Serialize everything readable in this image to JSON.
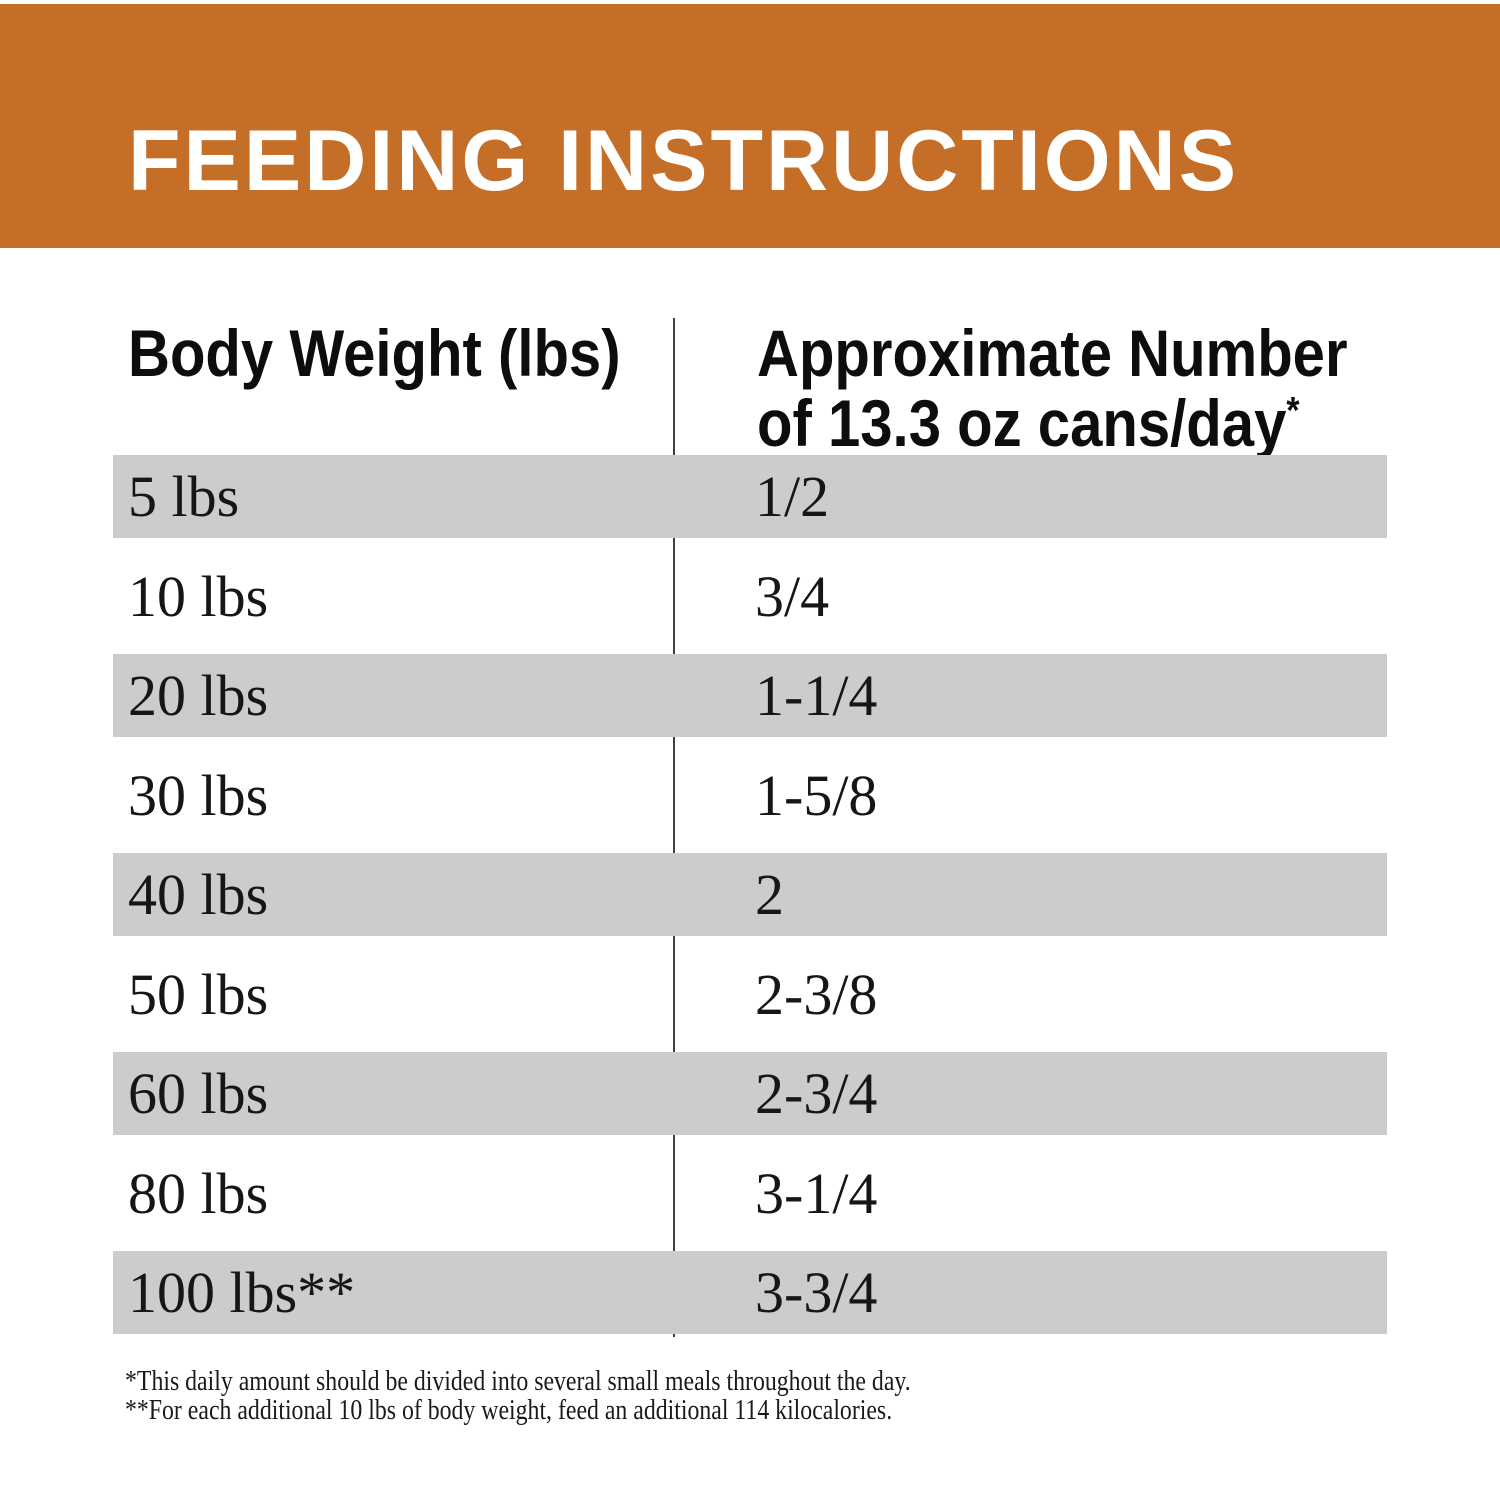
{
  "banner": {
    "title": "FEEDING INSTRUCTIONS"
  },
  "colors": {
    "banner_bg": "#C46E28",
    "banner_text": "#FFFFFF",
    "stripe_bg": "#CCCCCC",
    "divider": "#3F3F3F",
    "text": "#161616"
  },
  "table": {
    "col1_header": "Body Weight (lbs)",
    "col2_header_line1": "Approximate Number",
    "col2_header_line2": "of 13.3 oz cans/day",
    "col2_header_marker": "*",
    "rows": [
      {
        "weight": "5 lbs",
        "cans": "1/2"
      },
      {
        "weight": "10 lbs",
        "cans": "3/4"
      },
      {
        "weight": "20 lbs",
        "cans": "1-1/4"
      },
      {
        "weight": "30 lbs",
        "cans": "1-5/8"
      },
      {
        "weight": "40 lbs",
        "cans": "2"
      },
      {
        "weight": "50 lbs",
        "cans": "2-3/8"
      },
      {
        "weight": "60 lbs",
        "cans": "2-3/4"
      },
      {
        "weight": "80 lbs",
        "cans": "3-1/4"
      },
      {
        "weight": "100 lbs**",
        "cans": "3-3/4"
      }
    ]
  },
  "footnotes": {
    "line1": "*This daily amount should be divided into several small meals throughout the day.",
    "line2": "**For each additional 10 lbs of body weight, feed an additional 114 kilocalories."
  },
  "chart_data": {
    "type": "table",
    "title": "FEEDING INSTRUCTIONS",
    "columns": [
      "Body Weight (lbs)",
      "Approximate Number of 13.3 oz cans/day*"
    ],
    "rows": [
      [
        "5 lbs",
        "1/2"
      ],
      [
        "10 lbs",
        "3/4"
      ],
      [
        "20 lbs",
        "1-1/4"
      ],
      [
        "30 lbs",
        "1-5/8"
      ],
      [
        "40 lbs",
        "2"
      ],
      [
        "50 lbs",
        "2-3/8"
      ],
      [
        "60 lbs",
        "2-3/4"
      ],
      [
        "80 lbs",
        "3-1/4"
      ],
      [
        "100 lbs**",
        "3-3/4"
      ]
    ],
    "footnotes": [
      "*This daily amount should be divided into several small meals throughout the day.",
      "**For each additional 10 lbs of body weight, feed an additional 114 kilocalories."
    ],
    "layout_hints": {
      "striped_rows": "odd rows gray",
      "column_divider": true,
      "header_banner_color": "#C46E28"
    }
  }
}
